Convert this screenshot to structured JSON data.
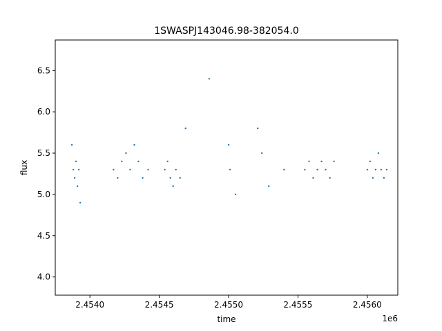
{
  "chart_data": {
    "type": "scatter",
    "title": "1SWASPJ143046.98-382054.0",
    "xlabel": "time",
    "ylabel": "flux",
    "x_offset_label": "1e6",
    "xlim": [
      2453750,
      2456220
    ],
    "ylim": [
      3.78,
      6.87
    ],
    "x_ticks": [
      2454000,
      2454500,
      2455000,
      2455500,
      2456000
    ],
    "x_tick_labels": [
      "2.4540",
      "2.4545",
      "2.4550",
      "2.4555",
      "2.4560"
    ],
    "y_ticks": [
      4.0,
      4.5,
      5.0,
      5.5,
      6.0,
      6.5
    ],
    "y_tick_labels": [
      "4.0",
      "4.5",
      "5.0",
      "5.5",
      "6.0",
      "6.5"
    ],
    "grid": false,
    "marker_color": "#1f77b4",
    "series": [
      {
        "x": [
          2453870,
          2453880,
          2453890,
          2453900,
          2453910,
          2453920,
          2453930,
          2454170,
          2454200,
          2454230,
          2454260,
          2454290,
          2454320,
          2454350,
          2454380,
          2454420,
          2454540,
          2454560,
          2454580,
          2454600,
          2454620,
          2454650,
          2454690,
          2454860,
          2455000,
          2455010,
          2455050,
          2455210,
          2455240,
          2455290,
          2455400,
          2455550,
          2455580,
          2455610,
          2455640,
          2455670,
          2455700,
          2455730,
          2455760,
          2456000,
          2456020,
          2456040,
          2456060,
          2456080,
          2456100,
          2456120,
          2456140
        ],
        "y": [
          5.6,
          5.3,
          5.2,
          5.4,
          5.1,
          5.3,
          4.9,
          5.3,
          5.2,
          5.4,
          5.5,
          5.3,
          5.6,
          5.4,
          5.2,
          5.3,
          5.3,
          5.4,
          5.2,
          5.1,
          5.3,
          5.2,
          5.8,
          6.4,
          5.6,
          5.3,
          5.0,
          5.8,
          5.5,
          5.1,
          5.3,
          5.3,
          5.4,
          5.2,
          5.3,
          5.4,
          5.3,
          5.2,
          5.4,
          5.3,
          5.4,
          5.2,
          5.3,
          5.5,
          5.3,
          5.2,
          5.3
        ]
      }
    ]
  }
}
